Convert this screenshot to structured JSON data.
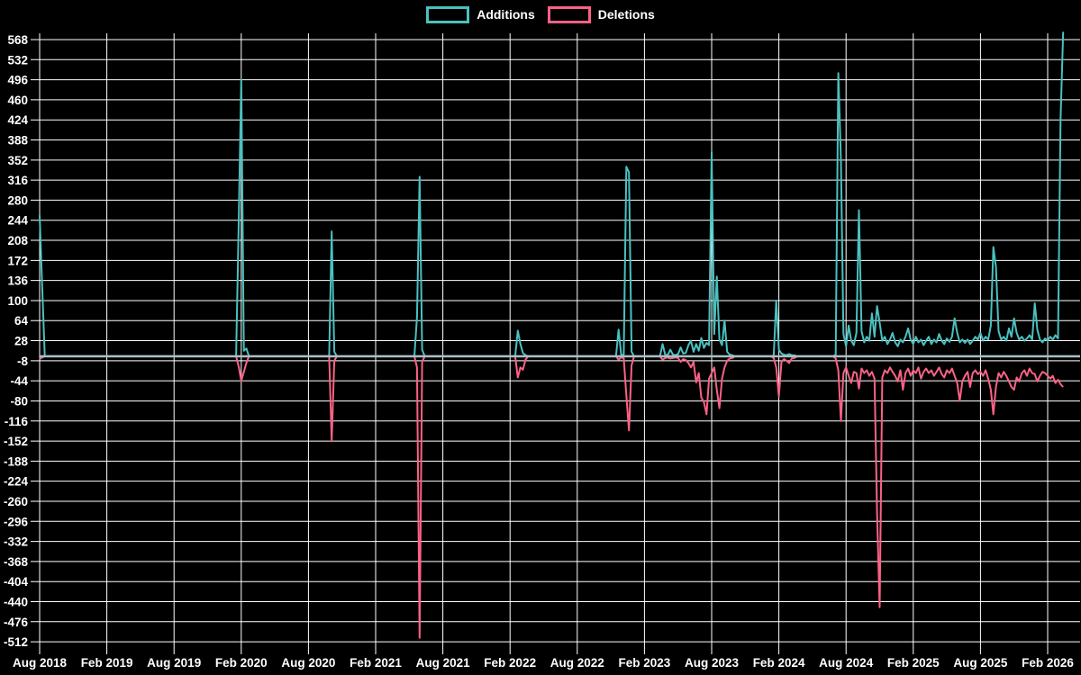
{
  "legend": {
    "additions_label": "Additions",
    "deletions_label": "Deletions"
  },
  "chart_data": {
    "type": "line",
    "title": "",
    "xlabel": "",
    "ylabel": "",
    "background_color": "#000000",
    "grid_color": "#ffffff",
    "grid": true,
    "legend_position": "top",
    "zero_line_color": "#aabfc8",
    "x_axis": {
      "unit": "weeks since Aug 2018",
      "tick_labels": [
        "Aug 2018",
        "Feb 2019",
        "Aug 2019",
        "Feb 2020",
        "Aug 2020",
        "Feb 2021",
        "Aug 2021",
        "Feb 2022",
        "Aug 2022",
        "Feb 2023",
        "Aug 2023",
        "Feb 2024",
        "Aug 2024",
        "Feb 2025",
        "Aug 2025",
        "Feb 2026"
      ],
      "tick_weeks": [
        0,
        26,
        52,
        78,
        104,
        130,
        156,
        182,
        208,
        234,
        260,
        286,
        312,
        338,
        364,
        390
      ]
    },
    "y_axis": {
      "min": -512,
      "max": 568,
      "step": 36,
      "ticks": [
        568,
        532,
        496,
        460,
        424,
        388,
        352,
        316,
        280,
        244,
        208,
        172,
        136,
        100,
        64,
        28,
        -8,
        -44,
        -80,
        -116,
        -152,
        -188,
        -224,
        -260,
        -296,
        -332,
        -368,
        -404,
        -440,
        -476,
        -512
      ]
    },
    "series": [
      {
        "name": "Additions",
        "color": "#4bc0c0"
      },
      {
        "name": "Deletions",
        "color": "#fb6285"
      }
    ],
    "points_format": "[week_index, additions, deletions]; weeks not listed are [0,0]",
    "total_weeks": 397,
    "points": [
      [
        0,
        253,
        -5
      ],
      [
        1,
        122,
        -2
      ],
      [
        2,
        0,
        0
      ],
      [
        76,
        0,
        0
      ],
      [
        77,
        232,
        -18
      ],
      [
        78,
        496,
        -44
      ],
      [
        79,
        10,
        -28
      ],
      [
        80,
        14,
        -12
      ],
      [
        81,
        0,
        0
      ],
      [
        112,
        0,
        0
      ],
      [
        113,
        224,
        -152
      ],
      [
        114,
        8,
        -8
      ],
      [
        115,
        0,
        0
      ],
      [
        145,
        0,
        0
      ],
      [
        146,
        70,
        -20
      ],
      [
        147,
        322,
        -505
      ],
      [
        148,
        12,
        -10
      ],
      [
        149,
        0,
        0
      ],
      [
        184,
        0,
        0
      ],
      [
        185,
        46,
        -38
      ],
      [
        186,
        22,
        -20
      ],
      [
        187,
        6,
        -24
      ],
      [
        188,
        2,
        -6
      ],
      [
        189,
        0,
        0
      ],
      [
        223,
        0,
        0
      ],
      [
        224,
        48,
        -6
      ],
      [
        225,
        2,
        -2
      ],
      [
        226,
        3,
        -3
      ],
      [
        227,
        340,
        -70
      ],
      [
        228,
        330,
        -133
      ],
      [
        229,
        8,
        -16
      ],
      [
        230,
        0,
        0
      ],
      [
        240,
        0,
        0
      ],
      [
        241,
        22,
        -6
      ],
      [
        242,
        3,
        -3
      ],
      [
        243,
        2,
        -2
      ],
      [
        244,
        12,
        -4
      ],
      [
        245,
        3,
        -3
      ],
      [
        246,
        2,
        -2
      ],
      [
        247,
        4,
        -3
      ],
      [
        248,
        16,
        -10
      ],
      [
        249,
        5,
        -5
      ],
      [
        250,
        6,
        -7
      ],
      [
        251,
        20,
        -12
      ],
      [
        252,
        28,
        -20
      ],
      [
        253,
        8,
        -10
      ],
      [
        254,
        22,
        -47
      ],
      [
        255,
        10,
        -30
      ],
      [
        256,
        33,
        -74
      ],
      [
        257,
        15,
        -82
      ],
      [
        258,
        24,
        -104
      ],
      [
        259,
        20,
        -40
      ],
      [
        260,
        366,
        -30
      ],
      [
        261,
        40,
        -20
      ],
      [
        262,
        143,
        -60
      ],
      [
        263,
        30,
        -93
      ],
      [
        264,
        20,
        -40
      ],
      [
        265,
        64,
        -20
      ],
      [
        266,
        8,
        -8
      ],
      [
        267,
        3,
        -4
      ],
      [
        268,
        2,
        -3
      ],
      [
        284,
        2,
        -3
      ],
      [
        285,
        100,
        -20
      ],
      [
        286,
        12,
        -72
      ],
      [
        287,
        5,
        -10
      ],
      [
        288,
        3,
        -5
      ],
      [
        289,
        2,
        -8
      ],
      [
        290,
        4,
        -12
      ],
      [
        291,
        2,
        -4
      ],
      [
        292,
        2,
        -3
      ],
      [
        308,
        3,
        -4
      ],
      [
        309,
        508,
        -25
      ],
      [
        310,
        352,
        -116
      ],
      [
        311,
        40,
        -30
      ],
      [
        312,
        18,
        -20
      ],
      [
        313,
        55,
        -35
      ],
      [
        314,
        28,
        -48
      ],
      [
        315,
        20,
        -28
      ],
      [
        316,
        42,
        -30
      ],
      [
        317,
        262,
        -58
      ],
      [
        318,
        45,
        -22
      ],
      [
        319,
        25,
        -30
      ],
      [
        320,
        35,
        -25
      ],
      [
        321,
        28,
        -35
      ],
      [
        322,
        77,
        -28
      ],
      [
        323,
        35,
        -40
      ],
      [
        324,
        90,
        -280
      ],
      [
        325,
        60,
        -450
      ],
      [
        326,
        28,
        -38
      ],
      [
        327,
        35,
        -25
      ],
      [
        328,
        22,
        -30
      ],
      [
        329,
        30,
        -20
      ],
      [
        330,
        42,
        -28
      ],
      [
        331,
        25,
        -35
      ],
      [
        332,
        18,
        -45
      ],
      [
        333,
        30,
        -25
      ],
      [
        334,
        25,
        -60
      ],
      [
        335,
        35,
        -30
      ],
      [
        336,
        50,
        -22
      ],
      [
        337,
        30,
        -35
      ],
      [
        338,
        22,
        -25
      ],
      [
        339,
        35,
        -30
      ],
      [
        340,
        25,
        -20
      ],
      [
        341,
        30,
        -40
      ],
      [
        342,
        20,
        -28
      ],
      [
        343,
        28,
        -22
      ],
      [
        344,
        35,
        -30
      ],
      [
        345,
        22,
        -25
      ],
      [
        346,
        30,
        -35
      ],
      [
        347,
        25,
        -28
      ],
      [
        348,
        40,
        -20
      ],
      [
        349,
        28,
        -32
      ],
      [
        350,
        22,
        -38
      ],
      [
        351,
        32,
        -25
      ],
      [
        352,
        26,
        -30
      ],
      [
        353,
        35,
        -22
      ],
      [
        354,
        68,
        -35
      ],
      [
        355,
        42,
        -48
      ],
      [
        356,
        25,
        -80
      ],
      [
        357,
        30,
        -45
      ],
      [
        358,
        24,
        -35
      ],
      [
        359,
        30,
        -28
      ],
      [
        360,
        22,
        -55
      ],
      [
        361,
        28,
        -30
      ],
      [
        362,
        35,
        -25
      ],
      [
        363,
        30,
        -32
      ],
      [
        364,
        42,
        -28
      ],
      [
        365,
        28,
        -35
      ],
      [
        366,
        35,
        -25
      ],
      [
        367,
        30,
        -40
      ],
      [
        368,
        55,
        -60
      ],
      [
        369,
        196,
        -104
      ],
      [
        370,
        160,
        -55
      ],
      [
        371,
        45,
        -30
      ],
      [
        372,
        30,
        -38
      ],
      [
        373,
        35,
        -28
      ],
      [
        374,
        28,
        -35
      ],
      [
        375,
        50,
        -45
      ],
      [
        376,
        35,
        -55
      ],
      [
        377,
        68,
        -60
      ],
      [
        378,
        42,
        -38
      ],
      [
        379,
        30,
        -45
      ],
      [
        380,
        35,
        -30
      ],
      [
        381,
        28,
        -25
      ],
      [
        382,
        32,
        -35
      ],
      [
        383,
        38,
        -22
      ],
      [
        384,
        30,
        -30
      ],
      [
        385,
        95,
        -32
      ],
      [
        386,
        48,
        -45
      ],
      [
        387,
        30,
        -35
      ],
      [
        388,
        25,
        -28
      ],
      [
        389,
        32,
        -30
      ],
      [
        390,
        28,
        -35
      ],
      [
        391,
        35,
        -40
      ],
      [
        392,
        30,
        -35
      ],
      [
        393,
        38,
        -48
      ],
      [
        394,
        32,
        -42
      ],
      [
        395,
        424,
        -50
      ],
      [
        396,
        582,
        -55
      ]
    ]
  }
}
